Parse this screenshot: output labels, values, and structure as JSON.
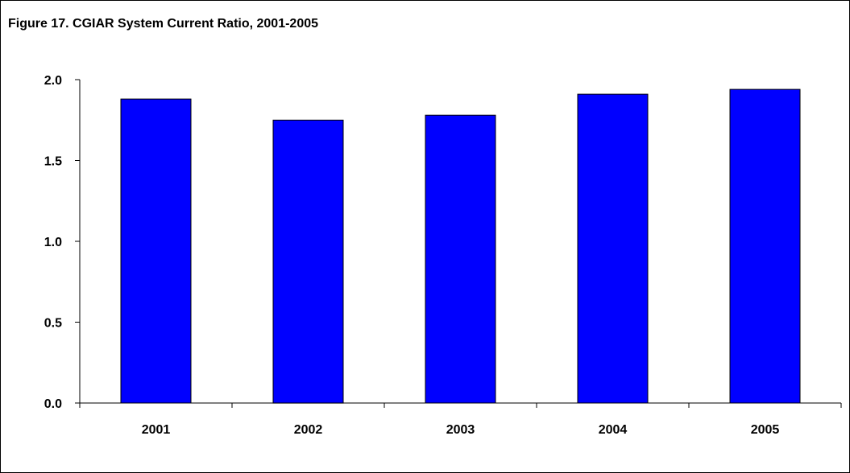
{
  "chart_data": {
    "type": "bar",
    "title": "Figure 17.  CGIAR System Current Ratio, 2001-2005",
    "categories": [
      "2001",
      "2002",
      "2003",
      "2004",
      "2005"
    ],
    "values": [
      1.88,
      1.75,
      1.78,
      1.91,
      1.94
    ],
    "ylim": [
      0,
      2.0
    ],
    "yticks": [
      "0.0",
      "0.5",
      "1.0",
      "1.5",
      "2.0"
    ],
    "grid": false,
    "legend": "none",
    "bar_color": "#0000ff",
    "bar_border_color": "#000000"
  }
}
